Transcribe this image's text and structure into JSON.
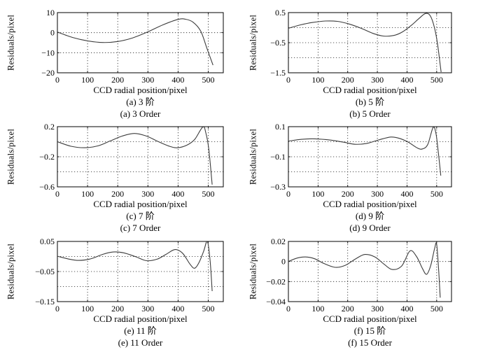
{
  "figure": {
    "title": "",
    "xlabel": "CCD radial position/pixel",
    "ylabel": "Residuals/pixel",
    "x_ticks": [
      0,
      100,
      200,
      300,
      400,
      500
    ],
    "x_range": [
      0,
      550
    ],
    "curve_color": "#3c3c3c",
    "axis_color": "#000000",
    "background_color": "#ffffff",
    "grid_style": "dotted"
  },
  "chart_data": [
    {
      "type": "line",
      "caption_cn": "(a) 3 阶",
      "caption_en": "(a) 3 Order",
      "xlabel": "CCD radial position/pixel",
      "ylabel": "Residuals/pixel",
      "x_range": [
        0,
        550
      ],
      "ylim": [
        -20,
        10
      ],
      "ytick_values": [
        10,
        0,
        -10,
        -20
      ],
      "ytick_labels": [
        "10",
        "0",
        "−10",
        "−20"
      ],
      "gridline_values": [
        0,
        -10
      ],
      "points": [
        [
          0,
          0.3
        ],
        [
          50,
          -2.4
        ],
        [
          100,
          -4.1
        ],
        [
          150,
          -4.9
        ],
        [
          200,
          -4.4
        ],
        [
          250,
          -2.6
        ],
        [
          300,
          0.4
        ],
        [
          350,
          3.9
        ],
        [
          400,
          6.6
        ],
        [
          425,
          6.7
        ],
        [
          450,
          5.2
        ],
        [
          475,
          0.8
        ],
        [
          495,
          -7.5
        ],
        [
          516,
          -16.2
        ]
      ]
    },
    {
      "type": "line",
      "caption_cn": "(b) 5 阶",
      "caption_en": "(b) 5 Order",
      "xlabel": "CCD radial position/pixel",
      "ylabel": "Residuals/pixel",
      "x_range": [
        0,
        550
      ],
      "ylim": [
        -1.5,
        0.5
      ],
      "ytick_values": [
        0.5,
        -0.5,
        -1.5
      ],
      "ytick_labels": [
        "0.5",
        "−0.5",
        "−1.5"
      ],
      "gridline_values": [
        0,
        -0.5,
        -1.0
      ],
      "points": [
        [
          0,
          -0.02
        ],
        [
          40,
          0.09
        ],
        [
          80,
          0.17
        ],
        [
          125,
          0.22
        ],
        [
          165,
          0.21
        ],
        [
          205,
          0.12
        ],
        [
          245,
          -0.02
        ],
        [
          285,
          -0.19
        ],
        [
          320,
          -0.28
        ],
        [
          355,
          -0.26
        ],
        [
          385,
          -0.14
        ],
        [
          415,
          0.08
        ],
        [
          440,
          0.3
        ],
        [
          462,
          0.47
        ],
        [
          478,
          0.4
        ],
        [
          492,
          0.02
        ],
        [
          503,
          -0.55
        ],
        [
          515,
          -1.48
        ]
      ]
    },
    {
      "type": "line",
      "caption_cn": "(c) 7 阶",
      "caption_en": "(c) 7 Order",
      "xlabel": "CCD radial position/pixel",
      "ylabel": "Residuals/pixel",
      "x_range": [
        0,
        550
      ],
      "ylim": [
        -0.6,
        0.2
      ],
      "ytick_values": [
        0.2,
        -0.2,
        -0.6
      ],
      "ytick_labels": [
        "0.2",
        "−0.2",
        "−0.6"
      ],
      "gridline_values": [
        0,
        -0.2,
        -0.4
      ],
      "points": [
        [
          0,
          0.0
        ],
        [
          45,
          -0.06
        ],
        [
          90,
          -0.08
        ],
        [
          135,
          -0.055
        ],
        [
          175,
          0.01
        ],
        [
          215,
          0.075
        ],
        [
          255,
          0.11
        ],
        [
          295,
          0.075
        ],
        [
          335,
          0.0
        ],
        [
          375,
          -0.065
        ],
        [
          400,
          -0.08
        ],
        [
          430,
          -0.045
        ],
        [
          455,
          0.03
        ],
        [
          482,
          0.195
        ],
        [
          492,
          0.12
        ],
        [
          502,
          -0.1
        ],
        [
          513,
          -0.57
        ]
      ]
    },
    {
      "type": "line",
      "caption_cn": "(d) 9 阶",
      "caption_en": "(d) 9 Order",
      "xlabel": "CCD radial position/pixel",
      "ylabel": "Residuals/pixel",
      "x_range": [
        0,
        550
      ],
      "ylim": [
        -0.3,
        0.1
      ],
      "ytick_values": [
        0.1,
        -0.1,
        -0.3
      ],
      "ytick_labels": [
        "0.1",
        "−0.1",
        "−0.3"
      ],
      "gridline_values": [
        0,
        -0.1,
        -0.2
      ],
      "points": [
        [
          0,
          0.004
        ],
        [
          45,
          0.016
        ],
        [
          90,
          0.019
        ],
        [
          140,
          0.011
        ],
        [
          185,
          -0.003
        ],
        [
          225,
          -0.017
        ],
        [
          265,
          -0.011
        ],
        [
          305,
          0.012
        ],
        [
          345,
          0.031
        ],
        [
          375,
          0.022
        ],
        [
          405,
          -0.004
        ],
        [
          435,
          -0.042
        ],
        [
          452,
          -0.048
        ],
        [
          470,
          -0.018
        ],
        [
          488,
          0.095
        ],
        [
          498,
          0.05
        ],
        [
          506,
          -0.08
        ],
        [
          514,
          -0.225
        ]
      ]
    },
    {
      "type": "line",
      "caption_cn": "(e) 11 阶",
      "caption_en": "(e) 11 Order",
      "xlabel": "CCD radial position/pixel",
      "ylabel": "Residuals/pixel",
      "x_range": [
        0,
        550
      ],
      "ylim": [
        -0.15,
        0.05
      ],
      "ytick_values": [
        0.05,
        -0.05,
        -0.15
      ],
      "ytick_labels": [
        "0.05",
        "−0.05",
        "−0.15"
      ],
      "gridline_values": [
        0,
        -0.05,
        -0.1
      ],
      "points": [
        [
          0,
          0.001
        ],
        [
          35,
          -0.008
        ],
        [
          70,
          -0.013
        ],
        [
          110,
          -0.008
        ],
        [
          150,
          0.007
        ],
        [
          185,
          0.015
        ],
        [
          220,
          0.012
        ],
        [
          260,
          -0.001
        ],
        [
          295,
          -0.014
        ],
        [
          330,
          -0.009
        ],
        [
          360,
          0.007
        ],
        [
          390,
          0.023
        ],
        [
          415,
          0.011
        ],
        [
          440,
          -0.026
        ],
        [
          455,
          -0.039
        ],
        [
          470,
          -0.019
        ],
        [
          485,
          0.018
        ],
        [
          497,
          0.05
        ],
        [
          506,
          -0.01
        ],
        [
          513,
          -0.115
        ]
      ]
    },
    {
      "type": "line",
      "caption_cn": "(f) 15 阶",
      "caption_en": "(f) 15 Order",
      "xlabel": "CCD radial position/pixel",
      "ylabel": "Residuals/pixel",
      "x_range": [
        0,
        550
      ],
      "ylim": [
        -0.04,
        0.02
      ],
      "ytick_values": [
        0.02,
        0,
        -0.02,
        -0.04
      ],
      "ytick_labels": [
        "0.02",
        "0",
        "−0.02",
        "−0.04"
      ],
      "gridline_values": [
        0,
        -0.02
      ],
      "points": [
        [
          0,
          0.0
        ],
        [
          30,
          0.0035
        ],
        [
          58,
          0.0045
        ],
        [
          88,
          0.0028
        ],
        [
          120,
          -0.002
        ],
        [
          158,
          -0.0058
        ],
        [
          192,
          -0.0038
        ],
        [
          226,
          0.0025
        ],
        [
          258,
          0.007
        ],
        [
          292,
          0.0045
        ],
        [
          322,
          -0.0025
        ],
        [
          350,
          -0.008
        ],
        [
          382,
          -0.0045
        ],
        [
          410,
          0.0105
        ],
        [
          432,
          0.005
        ],
        [
          452,
          -0.007
        ],
        [
          466,
          -0.0128
        ],
        [
          480,
          -0.004
        ],
        [
          493,
          0.013
        ],
        [
          500,
          0.0172
        ],
        [
          507,
          -0.01
        ],
        [
          512,
          -0.036
        ]
      ]
    }
  ]
}
